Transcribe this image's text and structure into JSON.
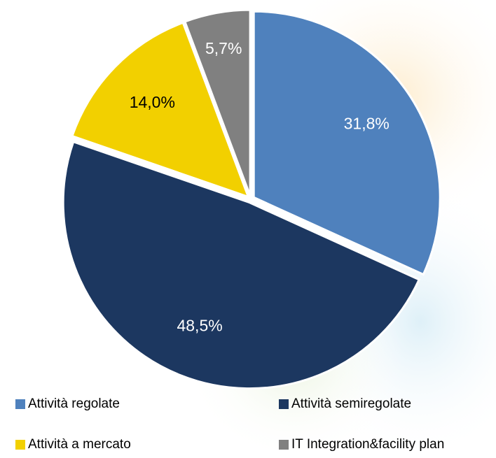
{
  "chart_data": {
    "type": "pie",
    "categories": [
      "Attività regolate",
      "Attività semiregolate",
      "Attività a mercato",
      "IT Integration&facility plan"
    ],
    "values": [
      31.8,
      48.5,
      14.0,
      5.7
    ],
    "value_labels": [
      "31,8%",
      "48,5%",
      "14,0%",
      "5,7%"
    ],
    "colors": [
      "#4f81bd",
      "#1c3760",
      "#f2d000",
      "#808080"
    ]
  }
}
